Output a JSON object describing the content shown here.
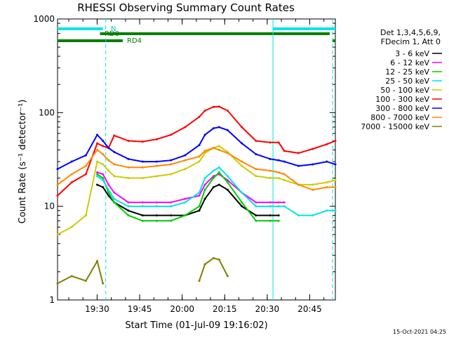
{
  "chart_data": {
    "type": "line",
    "title": "RHESSI Observing Summary Count Rates",
    "xlabel": "Start Time (01-Jul-09 19:16:02)",
    "ylabel": "Count Rate (s⁻¹ detector⁻¹)",
    "yscale": "log",
    "ylim": [
      1,
      1000
    ],
    "xlim_minutes": [
      0,
      98
    ],
    "x_tick_labels": [
      "19:30",
      "19:45",
      "20:00",
      "20:15",
      "20:30",
      "20:45"
    ],
    "y_tick_labels": [
      "1",
      "10",
      "100",
      "1000"
    ],
    "x": [
      0,
      5,
      10,
      14,
      16,
      18,
      20,
      25,
      30,
      35,
      40,
      45,
      50,
      52,
      55,
      57,
      60,
      65,
      70,
      75,
      78,
      80,
      85,
      90,
      95,
      98
    ],
    "series": [
      {
        "name": "3 - 6 keV",
        "color": "#000000",
        "values": [
          null,
          null,
          null,
          17,
          16,
          13,
          11,
          9,
          8,
          8,
          8,
          8,
          9,
          12,
          16,
          17,
          15,
          10,
          8,
          8,
          8,
          null,
          null,
          null,
          null,
          null
        ]
      },
      {
        "name": "6 - 12 keV",
        "color": "#ff00ff",
        "values": [
          null,
          null,
          null,
          23,
          22,
          17,
          14,
          11,
          11,
          11,
          11,
          12,
          13,
          17,
          21,
          22,
          19,
          14,
          11,
          11,
          11,
          11,
          null,
          null,
          null,
          null
        ]
      },
      {
        "name": "12 - 25 keV",
        "color": "#00cc00",
        "values": [
          null,
          null,
          null,
          22,
          20,
          14,
          11,
          8,
          7,
          7,
          7,
          8,
          10,
          15,
          20,
          23,
          18,
          11,
          7,
          7,
          7,
          null,
          null,
          null,
          null,
          null
        ]
      },
      {
        "name": "25 - 50 keV",
        "color": "#00e5e5",
        "values": [
          null,
          null,
          null,
          21,
          19,
          15,
          12,
          10,
          10,
          10,
          10,
          11,
          14,
          20,
          24,
          26,
          21,
          14,
          10,
          10,
          10,
          10,
          8,
          8,
          9,
          9
        ]
      },
      {
        "name": "50 - 100 keV",
        "color": "#cccc00",
        "values": [
          5,
          6,
          8,
          30,
          28,
          24,
          21,
          20,
          20,
          21,
          22,
          25,
          30,
          37,
          42,
          44,
          38,
          27,
          21,
          20,
          20,
          19,
          17,
          17,
          18,
          19
        ]
      },
      {
        "name": "100 - 300 keV",
        "color": "#ff0000",
        "values": [
          13,
          18,
          22,
          47,
          44,
          42,
          57,
          50,
          49,
          52,
          58,
          70,
          90,
          105,
          115,
          116,
          105,
          70,
          50,
          48,
          48,
          39,
          37,
          41,
          46,
          50
        ]
      },
      {
        "name": "300 - 800 keV",
        "color": "#0000ff",
        "values": [
          25,
          30,
          35,
          58,
          50,
          42,
          38,
          32,
          30,
          30,
          31,
          35,
          45,
          58,
          68,
          70,
          65,
          47,
          36,
          32,
          31,
          30,
          27,
          28,
          30,
          28
        ]
      },
      {
        "name": "800 - 7000 keV",
        "color": "#ff8800",
        "values": [
          17,
          22,
          27,
          40,
          36,
          31,
          28,
          26,
          26,
          27,
          28,
          31,
          34,
          39,
          42,
          40,
          37,
          30,
          25,
          24,
          23,
          22,
          17,
          15,
          16,
          16
        ]
      },
      {
        "name": "7000 - 15000 keV",
        "color": "#808000",
        "values": [
          1.5,
          1.8,
          1.6,
          2.6,
          1.5,
          null,
          null,
          null,
          null,
          null,
          null,
          null,
          1.6,
          2.4,
          2.8,
          2.7,
          1.8,
          null,
          null,
          null,
          null,
          null,
          null,
          null,
          null,
          null
        ]
      }
    ],
    "legend_header": [
      "Det 1,3,4,5,6,9,",
      "FDecim 1, Att 0"
    ],
    "legend_position": "right",
    "annotations": {
      "n_label": "N",
      "rd0_label": "RD0",
      "rd4_label": "RD4",
      "timestamp": "15-Oct-2021 04:25"
    },
    "flag_bars": [
      {
        "label": "N",
        "color": "#00e5e5",
        "ranges": [
          [
            0,
            16
          ],
          [
            76,
            98
          ]
        ]
      },
      {
        "label": "RD0",
        "color": "#008000",
        "ranges": [
          [
            15,
            96
          ]
        ]
      },
      {
        "label": "RD4",
        "color": "#008000",
        "ranges": [
          [
            0,
            23
          ],
          [
            97,
            98
          ]
        ]
      }
    ],
    "vertical_lines": [
      {
        "x": 17,
        "color": "#00e5e5",
        "style": "dashed"
      },
      {
        "x": 76,
        "color": "#00e5e5",
        "style": "solid"
      },
      {
        "x": 97,
        "color": "#00e5e5",
        "style": "dashed"
      }
    ]
  }
}
